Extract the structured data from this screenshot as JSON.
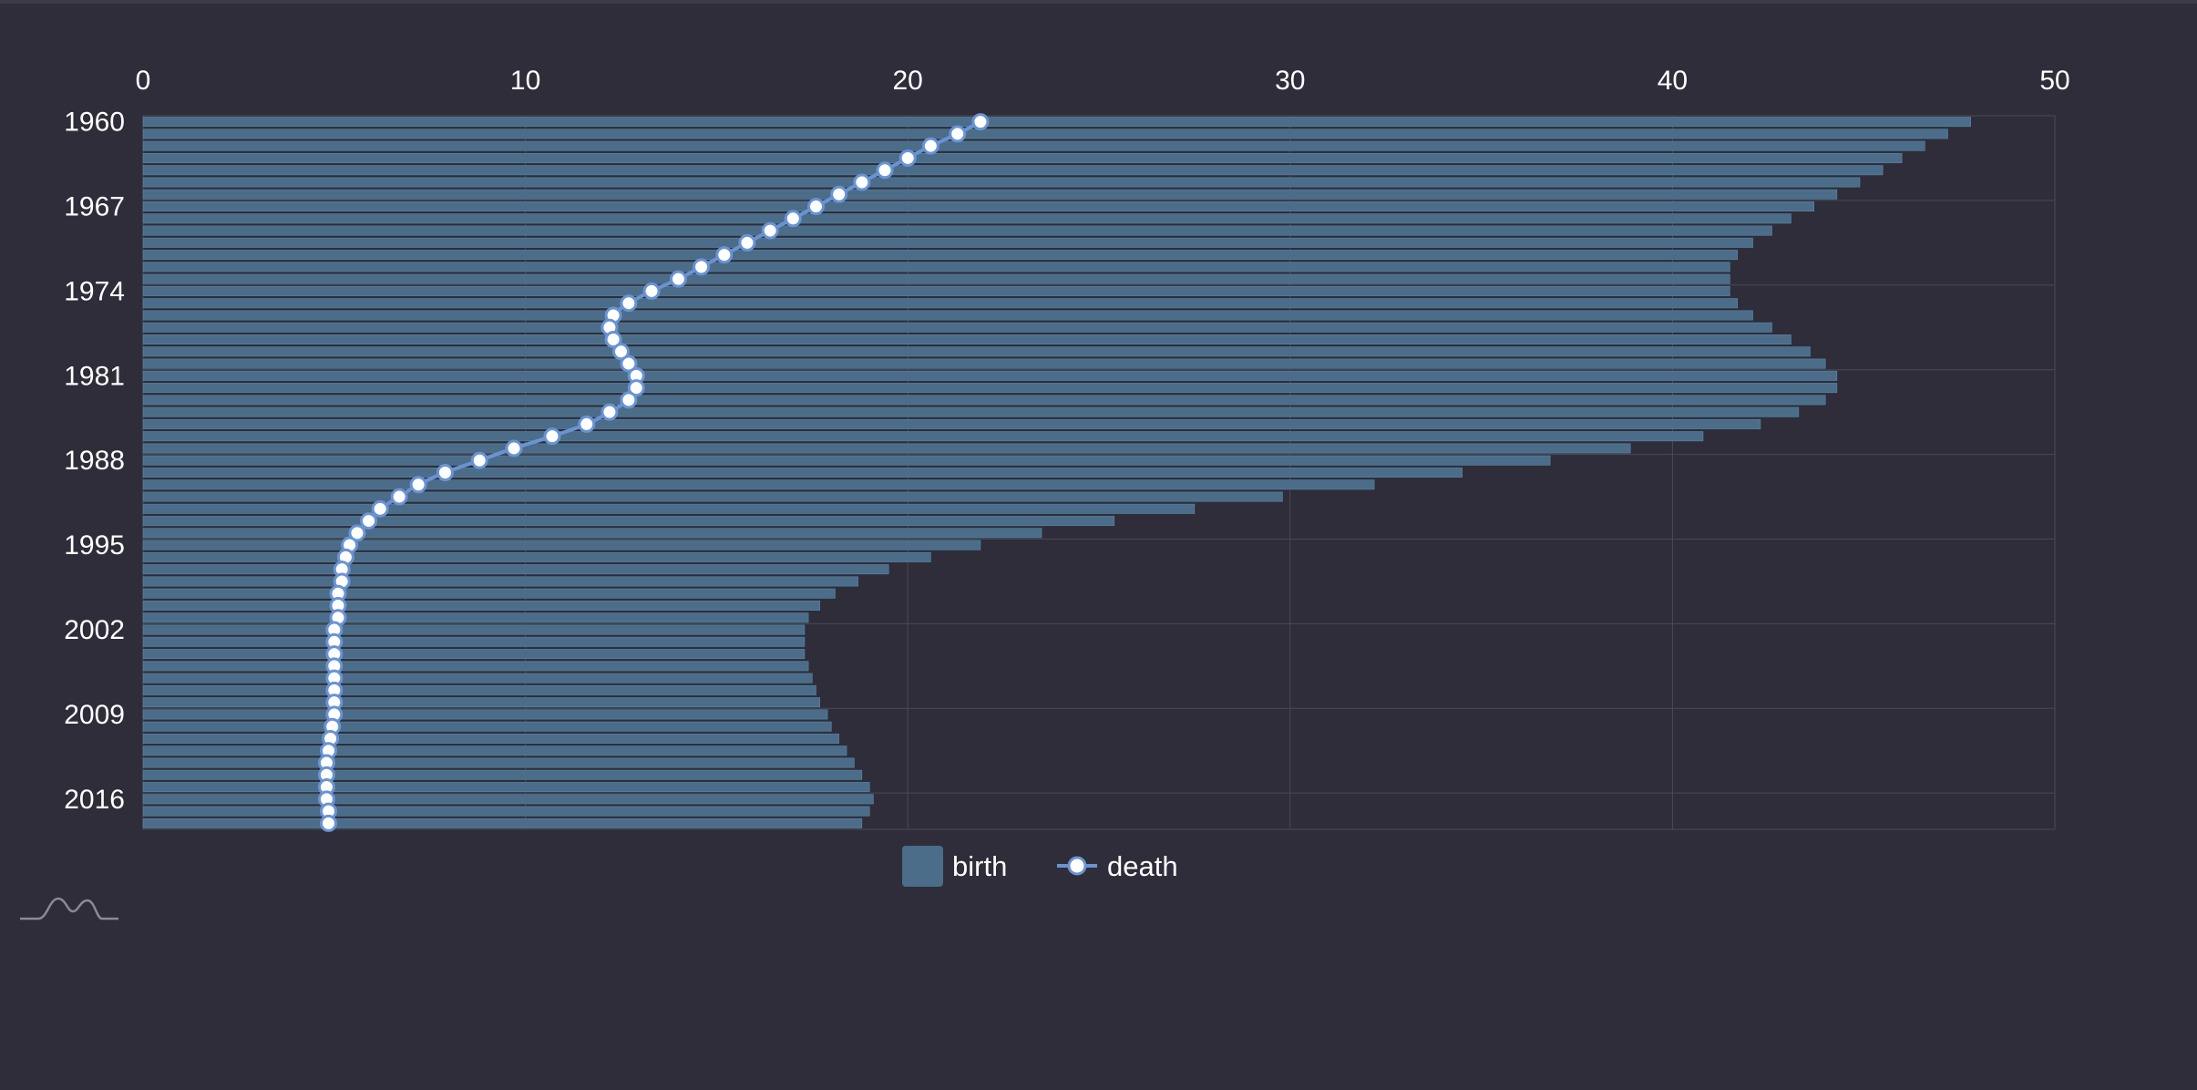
{
  "colors": {
    "background": "#2e2d39",
    "bar": "#4b6d89",
    "bar_stroke": "#5a86a6",
    "line": "#6a93d4",
    "marker_fill": "#ffffff",
    "grid": "#4a4958",
    "text": "#ffffff"
  },
  "icons": {
    "brand": "minimap-wave-icon"
  },
  "chart_data": {
    "type": "bar",
    "orientation": "horizontal",
    "title": "",
    "xlabel": "",
    "ylabel": "",
    "xlim": [
      0,
      50
    ],
    "x_ticks": [
      "0",
      "10",
      "20",
      "30",
      "40",
      "50"
    ],
    "y_ticks": [
      "1960",
      "1967",
      "1974",
      "1981",
      "1988",
      "1995",
      "2002",
      "2009",
      "2016"
    ],
    "grid": true,
    "legend_position": "bottom",
    "categories": [
      "1960",
      "1961",
      "1962",
      "1963",
      "1964",
      "1965",
      "1966",
      "1967",
      "1968",
      "1969",
      "1970",
      "1971",
      "1972",
      "1973",
      "1974",
      "1975",
      "1976",
      "1977",
      "1978",
      "1979",
      "1980",
      "1981",
      "1982",
      "1983",
      "1984",
      "1985",
      "1986",
      "1987",
      "1988",
      "1989",
      "1990",
      "1991",
      "1992",
      "1993",
      "1994",
      "1995",
      "1996",
      "1997",
      "1998",
      "1999",
      "2000",
      "2001",
      "2002",
      "2003",
      "2004",
      "2005",
      "2006",
      "2007",
      "2008",
      "2009",
      "2010",
      "2011",
      "2012",
      "2013",
      "2014",
      "2015",
      "2016",
      "2017",
      "2018"
    ],
    "series": [
      {
        "name": "birth",
        "type": "bar",
        "values": [
          47.8,
          47.2,
          46.6,
          46.0,
          45.5,
          44.9,
          44.3,
          43.7,
          43.1,
          42.6,
          42.1,
          41.7,
          41.5,
          41.5,
          41.5,
          41.7,
          42.1,
          42.6,
          43.1,
          43.6,
          44.0,
          44.3,
          44.3,
          44.0,
          43.3,
          42.3,
          40.8,
          38.9,
          36.8,
          34.5,
          32.2,
          29.8,
          27.5,
          25.4,
          23.5,
          21.9,
          20.6,
          19.5,
          18.7,
          18.1,
          17.7,
          17.4,
          17.3,
          17.3,
          17.3,
          17.4,
          17.5,
          17.6,
          17.7,
          17.9,
          18.0,
          18.2,
          18.4,
          18.6,
          18.8,
          19.0,
          19.1,
          19.0,
          18.8
        ]
      },
      {
        "name": "death",
        "type": "line",
        "values": [
          21.9,
          21.3,
          20.6,
          20.0,
          19.4,
          18.8,
          18.2,
          17.6,
          17.0,
          16.4,
          15.8,
          15.2,
          14.6,
          14.0,
          13.3,
          12.7,
          12.3,
          12.2,
          12.3,
          12.5,
          12.7,
          12.9,
          12.9,
          12.7,
          12.2,
          11.6,
          10.7,
          9.7,
          8.8,
          7.9,
          7.2,
          6.7,
          6.2,
          5.9,
          5.6,
          5.4,
          5.3,
          5.2,
          5.2,
          5.1,
          5.1,
          5.1,
          5.0,
          5.0,
          5.0,
          5.0,
          5.0,
          5.0,
          5.0,
          5.0,
          4.95,
          4.9,
          4.85,
          4.8,
          4.8,
          4.8,
          4.8,
          4.85,
          4.85
        ]
      }
    ]
  },
  "legend": {
    "birth_label": "birth",
    "death_label": "death"
  }
}
